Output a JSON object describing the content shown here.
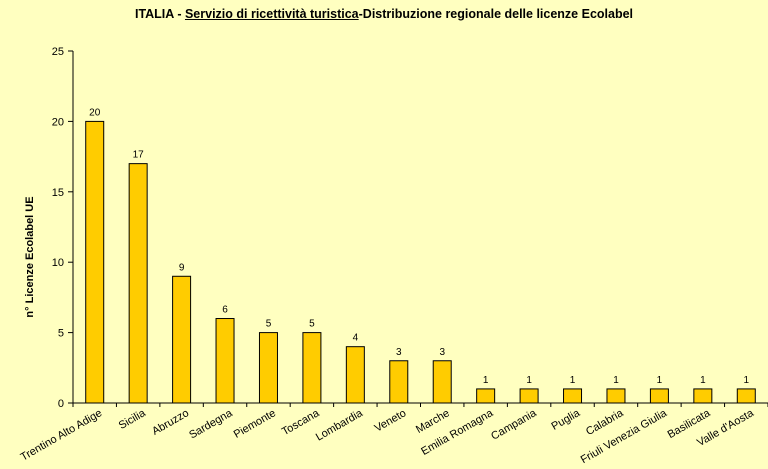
{
  "chart_data": {
    "type": "bar",
    "title_parts": {
      "prefix": "ITALIA  - ",
      "underlined": "Servizio di ricettività turistica",
      "suffix": "-Distribuzione regionale delle licenze Ecolabel"
    },
    "xlabel": "",
    "ylabel": "n° Licenze  Ecolabel  UE",
    "ylim": [
      0,
      25
    ],
    "yticks": [
      0,
      5,
      10,
      15,
      20,
      25
    ],
    "categories": [
      "Trentino Alto Adige",
      "Sicilia",
      "Abruzzo",
      "Sardegna",
      "Piemonte",
      "Toscana",
      "Lombardia",
      "Veneto",
      "Marche",
      "Emilia Romagna",
      "Campania",
      "Puglia",
      "Calabria",
      "Friuli Venezia Giulia",
      "Basilicata",
      "Valle d'Aosta"
    ],
    "values": [
      20,
      17,
      9,
      6,
      5,
      5,
      4,
      3,
      3,
      1,
      1,
      1,
      1,
      1,
      1,
      1
    ],
    "bar_color": "#FFCC00",
    "bar_edge_color": "#000000",
    "background_color": "#FFFFC0",
    "grid": false,
    "legend": "none"
  }
}
